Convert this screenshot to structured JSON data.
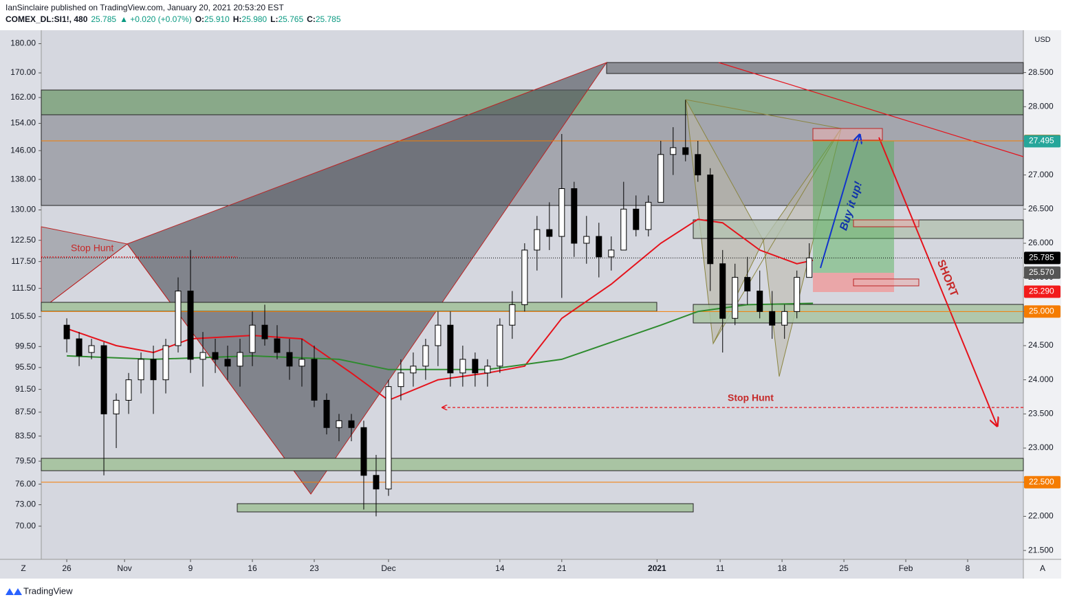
{
  "header": {
    "published": "IanSinclaire published on TradingView.com, January 20, 2021 20:53:20 EST",
    "symbol": "COMEX_DL:SI1!, 480",
    "last": "25.785",
    "change": "▲ +0.020 (+0.07%)",
    "ohlc": [
      {
        "label": "O:",
        "value": "25.910"
      },
      {
        "label": "H:",
        "value": "25.980"
      },
      {
        "label": "L:",
        "value": "25.765"
      },
      {
        "label": "C:",
        "value": "25.785"
      }
    ]
  },
  "footer": {
    "brand": "TradingView"
  },
  "toolbar": {
    "left": "Z",
    "right": "A"
  },
  "chart_data": {
    "type": "candlestick",
    "y_label": "USD",
    "up_color": "#ffffff",
    "down_color": "#000000",
    "xlim": [
      -2.06,
      77.3
    ],
    "xticks": [
      {
        "value": 0,
        "label": "26"
      },
      {
        "value": 4.67,
        "label": "Nov"
      },
      {
        "value": 10,
        "label": "9"
      },
      {
        "value": 15,
        "label": "16"
      },
      {
        "value": 20,
        "label": "23"
      },
      {
        "value": 26,
        "label": "Dec"
      },
      {
        "value": 35,
        "label": "14"
      },
      {
        "value": 40,
        "label": "21"
      },
      {
        "value": 47.7,
        "label": "2021"
      },
      {
        "value": 52.8,
        "label": "11"
      },
      {
        "value": 57.8,
        "label": "18"
      },
      {
        "value": 62.8,
        "label": "25"
      },
      {
        "value": 67.8,
        "label": "Feb"
      },
      {
        "value": 72.8,
        "label": "8"
      }
    ],
    "ylim": [
      21.37,
      29.12
    ],
    "yticks": [
      {
        "value": 21.5,
        "label": "21.500"
      },
      {
        "value": 22,
        "label": "22.000"
      },
      {
        "value": 22.5,
        "label": "22.500"
      },
      {
        "value": 23,
        "label": "23.000"
      },
      {
        "value": 23.5,
        "label": "23.500"
      },
      {
        "value": 24,
        "label": "24.000"
      },
      {
        "value": 24.5,
        "label": "24.500"
      },
      {
        "value": 25,
        "label": "25.000"
      },
      {
        "value": 25.5,
        "label": "25.500"
      },
      {
        "value": 26,
        "label": "26.000"
      },
      {
        "value": 26.5,
        "label": "26.500"
      },
      {
        "value": 27,
        "label": "27.000"
      },
      {
        "value": 27.5,
        "label": "27.500"
      },
      {
        "value": 28,
        "label": "28.000"
      },
      {
        "value": 28.5,
        "label": "28.500"
      }
    ],
    "y2lim": [
      65.6,
      184.8
    ],
    "y2_log": true,
    "y2ticks": [
      {
        "value": 180,
        "label": "180.00"
      },
      {
        "value": 170,
        "label": "170.00"
      },
      {
        "value": 162,
        "label": "162.00"
      },
      {
        "value": 154,
        "label": "154.00"
      },
      {
        "value": 146,
        "label": "146.00"
      },
      {
        "value": 138,
        "label": "138.00"
      },
      {
        "value": 130,
        "label": "130.00"
      },
      {
        "value": 122.5,
        "label": "122.50"
      },
      {
        "value": 117.5,
        "label": "117.50"
      },
      {
        "value": 111.5,
        "label": "111.50"
      },
      {
        "value": 105.5,
        "label": "105.50"
      },
      {
        "value": 99.5,
        "label": "99.50"
      },
      {
        "value": 95.5,
        "label": "95.50"
      },
      {
        "value": 91.5,
        "label": "91.50"
      },
      {
        "value": 87.5,
        "label": "87.50"
      },
      {
        "value": 83.5,
        "label": "83.50"
      },
      {
        "value": 79.5,
        "label": "79.50"
      },
      {
        "value": 76,
        "label": "76.00"
      },
      {
        "value": 73,
        "label": "73.00"
      },
      {
        "value": 70,
        "label": "70.00"
      }
    ],
    "x": [
      0,
      1,
      2,
      3,
      4,
      5,
      6,
      7,
      8,
      9,
      10,
      11,
      12,
      13,
      14,
      15,
      16,
      17,
      18,
      19,
      20,
      21,
      22,
      23,
      24,
      25,
      26,
      27,
      28,
      29,
      30,
      31,
      32,
      33,
      34,
      35,
      36,
      37,
      38,
      39,
      40,
      41,
      42,
      43,
      44,
      45,
      46,
      47,
      48,
      49,
      50,
      51,
      52,
      53,
      54,
      55,
      56,
      57,
      58,
      59,
      60
    ],
    "open": [
      24.8,
      24.6,
      24.4,
      24.5,
      23.5,
      23.7,
      24.0,
      24.3,
      24.0,
      24.5,
      25.3,
      24.3,
      24.4,
      24.3,
      24.2,
      24.4,
      24.8,
      24.6,
      24.4,
      24.2,
      24.3,
      23.7,
      23.3,
      23.4,
      23.3,
      22.6,
      22.4,
      23.9,
      24.1,
      24.2,
      24.5,
      24.8,
      24.1,
      24.3,
      24.1,
      24.2,
      24.8,
      25.1,
      25.9,
      26.2,
      26.1,
      26.8,
      26.0,
      26.1,
      25.8,
      25.9,
      26.5,
      26.2,
      26.6,
      27.3,
      27.4,
      27.3,
      27.0,
      25.7,
      24.9,
      25.5,
      25.3,
      25.0,
      24.8,
      25.0,
      25.5
    ],
    "high": [
      24.9,
      24.7,
      24.6,
      24.55,
      23.8,
      24.1,
      24.4,
      24.5,
      24.6,
      25.5,
      25.9,
      24.7,
      24.6,
      24.5,
      24.6,
      25.0,
      25.1,
      24.8,
      24.6,
      24.6,
      24.5,
      23.8,
      23.5,
      23.5,
      23.4,
      22.9,
      24.0,
      24.3,
      24.4,
      24.6,
      25.0,
      25.0,
      24.5,
      24.4,
      24.3,
      24.9,
      25.3,
      26.0,
      26.4,
      26.6,
      27.6,
      26.9,
      26.4,
      26.3,
      26.1,
      26.9,
      26.7,
      26.7,
      27.5,
      27.7,
      28.1,
      27.5,
      27.1,
      25.9,
      25.7,
      25.8,
      25.6,
      25.3,
      25.1,
      25.6,
      26.0
    ],
    "low": [
      24.4,
      24.2,
      24.3,
      22.6,
      23.0,
      23.5,
      23.8,
      23.5,
      23.8,
      24.4,
      24.1,
      23.9,
      24.1,
      24.0,
      23.9,
      24.2,
      24.5,
      24.3,
      24.0,
      23.9,
      23.6,
      23.2,
      23.1,
      23.1,
      22.1,
      22.0,
      22.3,
      23.7,
      23.9,
      24.0,
      24.2,
      23.9,
      23.9,
      23.9,
      23.9,
      24.1,
      24.6,
      25.0,
      25.6,
      25.9,
      25.2,
      25.8,
      25.7,
      25.5,
      25.6,
      25.9,
      26.1,
      26.1,
      26.6,
      27.0,
      27.2,
      26.9,
      25.3,
      24.4,
      24.8,
      25.1,
      24.9,
      24.6,
      24.6,
      24.9,
      25.5
    ],
    "close": [
      24.6,
      24.35,
      24.5,
      23.5,
      23.7,
      24.0,
      24.3,
      24.0,
      24.5,
      25.3,
      24.3,
      24.4,
      24.3,
      24.2,
      24.4,
      24.8,
      24.6,
      24.4,
      24.2,
      24.3,
      23.7,
      23.3,
      23.4,
      23.3,
      22.6,
      22.4,
      23.9,
      24.1,
      24.2,
      24.5,
      24.8,
      24.1,
      24.3,
      24.1,
      24.2,
      24.8,
      25.1,
      25.9,
      26.2,
      26.1,
      26.8,
      26.0,
      26.1,
      25.8,
      25.9,
      26.5,
      26.2,
      26.6,
      27.3,
      27.4,
      27.3,
      27.0,
      25.7,
      24.9,
      25.5,
      25.3,
      25.0,
      24.8,
      25.0,
      25.5,
      25.785
    ],
    "moving_averages": [
      {
        "color": "#e5121b",
        "x": [
          0,
          4,
          7,
          10,
          15,
          19,
          23,
          26,
          30,
          34,
          37,
          40,
          44,
          48,
          51,
          53,
          56,
          59,
          60.3
        ],
        "values": [
          24.75,
          24.5,
          24.4,
          24.6,
          24.65,
          24.6,
          24.1,
          23.7,
          24.0,
          24.1,
          24.2,
          24.9,
          25.4,
          26.0,
          26.35,
          26.3,
          25.9,
          25.7,
          25.75
        ]
      },
      {
        "color": "#2e8b2e",
        "x": [
          0,
          7,
          15,
          22,
          26,
          34,
          40,
          44,
          48,
          51,
          55,
          60.3
        ],
        "values": [
          24.35,
          24.3,
          24.35,
          24.3,
          24.15,
          24.15,
          24.3,
          24.55,
          24.8,
          25.0,
          25.1,
          25.12
        ]
      }
    ],
    "price_labels": [
      {
        "value": 27.5,
        "label": "27.500",
        "color": "#f57c00"
      },
      {
        "value": 27.495,
        "label": "27.495",
        "color": "#26a69a"
      },
      {
        "value": 25.785,
        "label": "25.785",
        "color": "#000000"
      },
      {
        "value": 25.57,
        "label": "25.570",
        "color": "#555555"
      },
      {
        "value": 25.29,
        "label": "25.290",
        "color": "#f21b1b"
      },
      {
        "value": 25,
        "label": "25.000",
        "color": "#f57c00"
      },
      {
        "value": 22.5,
        "label": "22.500",
        "color": "#f57c00"
      }
    ],
    "annotations": {
      "stop_hunt_left": "Stop Hunt",
      "stop_hunt_right": "Stop Hunt",
      "buy": "Buy it up!",
      "short": "SHORT"
    }
  }
}
